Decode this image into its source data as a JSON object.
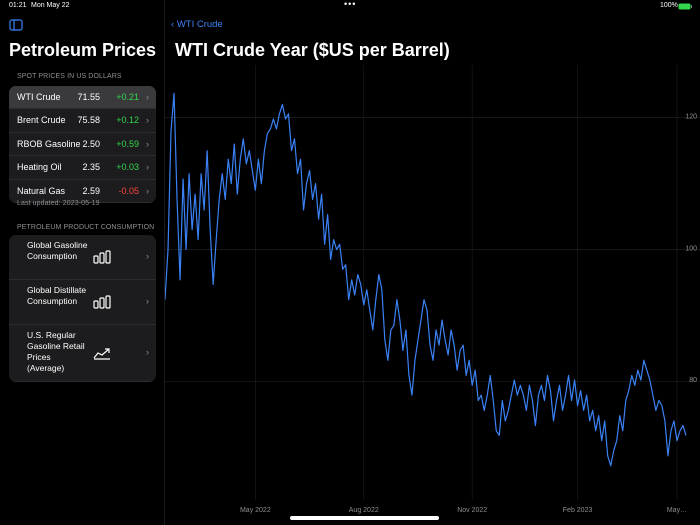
{
  "status_bar": {
    "time": "01:21",
    "date": "Mon May 22",
    "battery": "100%"
  },
  "sidebar": {
    "title": "Petroleum Prices",
    "spot_header": "SPOT PRICES IN US DOLLARS",
    "spot_prices": [
      {
        "name": "WTI Crude",
        "price": "71.55",
        "change": "+0.21"
      },
      {
        "name": "Brent Crude",
        "price": "75.58",
        "change": "+0.12"
      },
      {
        "name": "RBOB Gasoline",
        "price": "2.50",
        "change": "+0.59"
      },
      {
        "name": "Heating Oil",
        "price": "2.35",
        "change": "+0.03"
      },
      {
        "name": "Natural Gas",
        "price": "2.59",
        "change": "-0.05"
      }
    ],
    "last_updated": "Last updated: 2023-05-19",
    "consumption_header": "PETROLEUM PRODUCT CONSUMPTION",
    "consumption_items": [
      {
        "label": "Global Gasoline Consumption"
      },
      {
        "label": "Global Distillate Consumption"
      },
      {
        "label": "U.S. Regular Gasoline Retail Prices (Average)"
      }
    ]
  },
  "detail": {
    "back_label": "WTI Crude"
  },
  "chart_data": {
    "type": "line",
    "title": "WTI Crude Year ($US per Barrel)",
    "color": "#3b82f6",
    "grid": true,
    "y_axis_side": "right",
    "ylim": [
      62,
      128
    ],
    "yticks": [
      80,
      100,
      120
    ],
    "categories": [
      null,
      null,
      null,
      null,
      null,
      null,
      null,
      null,
      null,
      null,
      null,
      null,
      null,
      null,
      null,
      null,
      null,
      null,
      null,
      null,
      null,
      null,
      null,
      null,
      null,
      null,
      null,
      null,
      null,
      null,
      "May 2022",
      null,
      null,
      null,
      null,
      null,
      null,
      null,
      null,
      null,
      null,
      null,
      null,
      null,
      null,
      null,
      null,
      null,
      null,
      null,
      null,
      null,
      null,
      null,
      null,
      null,
      null,
      null,
      null,
      null,
      null,
      null,
      null,
      null,
      null,
      null,
      "Aug 2022",
      null,
      null,
      null,
      null,
      null,
      null,
      null,
      null,
      null,
      null,
      null,
      null,
      null,
      null,
      null,
      null,
      null,
      null,
      null,
      null,
      null,
      null,
      null,
      null,
      null,
      null,
      null,
      null,
      null,
      null,
      null,
      null,
      null,
      null,
      null,
      "Nov 2022",
      null,
      null,
      null,
      null,
      null,
      null,
      null,
      null,
      null,
      null,
      null,
      null,
      null,
      null,
      null,
      null,
      null,
      null,
      null,
      null,
      null,
      null,
      null,
      null,
      null,
      null,
      null,
      null,
      null,
      null,
      null,
      null,
      null,
      null,
      "Feb 2023",
      null,
      null,
      null,
      null,
      null,
      null,
      null,
      null,
      null,
      null,
      null,
      null,
      null,
      null,
      null,
      null,
      null,
      null,
      null,
      null,
      null,
      null,
      null,
      null,
      null,
      null,
      null,
      null,
      null,
      null,
      null,
      null,
      "May…",
      null,
      null,
      null
    ],
    "values": [
      92.4,
      100,
      118,
      123.7,
      107.6,
      95.4,
      110.7,
      100,
      111.5,
      103,
      108.4,
      101.5,
      111.5,
      106,
      115,
      103,
      94.7,
      101.5,
      107.6,
      111.5,
      107.6,
      113.7,
      110,
      116,
      108.4,
      113.7,
      116.8,
      113,
      115,
      112,
      109,
      113.7,
      110,
      115,
      117.6,
      118.3,
      119.8,
      118.3,
      120.6,
      122,
      119.8,
      120.6,
      115,
      116.8,
      111.5,
      113.7,
      106,
      110,
      112,
      107.6,
      110,
      104.6,
      108.4,
      100.8,
      105.3,
      98.5,
      101.5,
      100,
      100.8,
      97,
      97.7,
      92.4,
      95.4,
      93.1,
      96.2,
      94.7,
      91.6,
      93.9,
      90.8,
      87.8,
      92.4,
      96.2,
      93.9,
      86.3,
      83.2,
      87.8,
      88.5,
      92.4,
      89.3,
      84.7,
      87.8,
      80.9,
      77.9,
      83.2,
      86.3,
      89.3,
      92.4,
      90.8,
      85.5,
      83.2,
      87.8,
      85.5,
      89.3,
      86.3,
      84,
      87.8,
      85.5,
      81.7,
      84.7,
      85.5,
      80.9,
      83.2,
      79.4,
      81.7,
      77.1,
      77.9,
      75.6,
      77.9,
      80.9,
      77.1,
      72.5,
      71.8,
      77.1,
      74,
      75.6,
      77.9,
      80.2,
      77.9,
      79.4,
      77.9,
      75.6,
      79.4,
      77.1,
      73.3,
      77.9,
      79.4,
      77.1,
      80.9,
      78.6,
      74,
      77.1,
      79.4,
      75.6,
      77.9,
      80.9,
      77.1,
      80.2,
      76.3,
      78.6,
      75.6,
      77.9,
      74,
      75.6,
      72.5,
      74.8,
      71,
      74,
      68.7,
      67.2,
      69.5,
      71,
      74.8,
      72.5,
      77.1,
      78.6,
      80.9,
      79.4,
      81.7,
      80.2,
      83.2,
      81.7,
      80.2,
      77.9,
      75.6,
      77.1,
      76.3,
      74,
      68.7,
      72.5,
      74,
      71,
      72.5,
      73.3,
      71.8
    ]
  }
}
